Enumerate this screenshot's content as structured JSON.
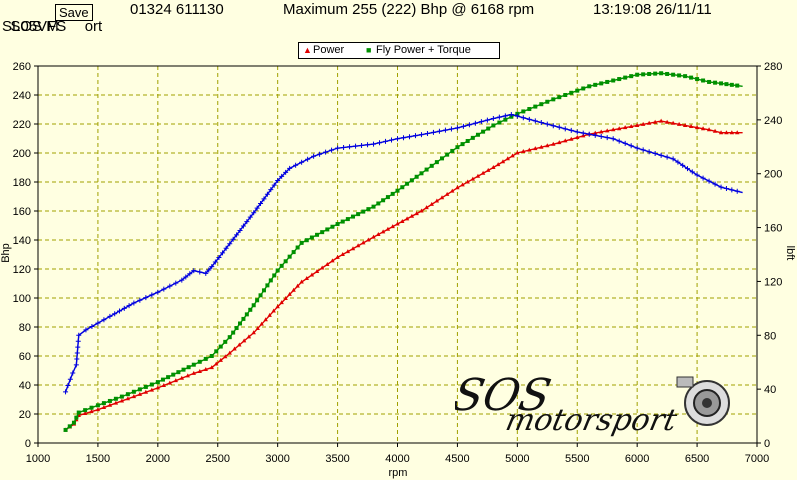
{
  "header": {
    "company": "SOS M",
    "company_tail": "ort",
    "phone": "01324 611130",
    "maximum": "Maximum 255 (222) Bhp @ 6168 rpm",
    "datetime": "13:19:08 26/11/11",
    "reg": "SL05VFS",
    "save_label": "Save"
  },
  "legend": {
    "power_label": "Power",
    "fly_label": "Fly Power + Torque"
  },
  "logo": {
    "line1": "SOS",
    "line2": "motorsport"
  },
  "colors": {
    "power": "#e00000",
    "fly": "#009000",
    "torque": "#0000e0",
    "grid": "#a0a000",
    "background": "#ffffe1"
  },
  "chart_data": {
    "type": "line",
    "title": "",
    "xlabel": "rpm",
    "ylabel": "Bhp",
    "y2label": "lbft",
    "xlim": [
      1000,
      7000
    ],
    "ylim": [
      0,
      260
    ],
    "y2lim": [
      0,
      280
    ],
    "xticks": [
      1000,
      1500,
      2000,
      2500,
      3000,
      3500,
      4000,
      4500,
      5000,
      5500,
      6000,
      6500,
      7000
    ],
    "yticks": [
      0,
      20,
      40,
      60,
      80,
      100,
      120,
      140,
      160,
      180,
      200,
      220,
      240,
      260
    ],
    "y2ticks": [
      0,
      40,
      80,
      120,
      160,
      200,
      240,
      280
    ],
    "grid": true,
    "series": [
      {
        "name": "Power",
        "axis": "left",
        "x": [
          1230,
          1300,
          1340,
          1500,
          1700,
          2000,
          2300,
          2450,
          2600,
          2800,
          3000,
          3200,
          3500,
          3800,
          4000,
          4200,
          4500,
          4800,
          5000,
          5300,
          5600,
          6000,
          6200,
          6400,
          6600,
          6700,
          6880
        ],
        "y": [
          9,
          13,
          19,
          23,
          29,
          38,
          48,
          52,
          62,
          76,
          94,
          111,
          128,
          142,
          151,
          160,
          176,
          190,
          200,
          206,
          213,
          219,
          222,
          219,
          216,
          214,
          214
        ]
      },
      {
        "name": "Fly Power",
        "axis": "left",
        "x": [
          1230,
          1300,
          1340,
          1500,
          1700,
          2000,
          2300,
          2450,
          2600,
          2800,
          3000,
          3200,
          3500,
          3800,
          4000,
          4200,
          4500,
          4800,
          5000,
          5300,
          5600,
          6000,
          6200,
          6400,
          6600,
          6700,
          6880
        ],
        "y": [
          9,
          14,
          21,
          26,
          32,
          42,
          54,
          60,
          73,
          95,
          119,
          138,
          151,
          163,
          174,
          186,
          204,
          219,
          227,
          237,
          246,
          254,
          255,
          253,
          249,
          248,
          246
        ]
      },
      {
        "name": "Torque",
        "axis": "right",
        "x": [
          1230,
          1290,
          1320,
          1340,
          1400,
          1500,
          1600,
          1800,
          2000,
          2200,
          2300,
          2400,
          2450,
          2600,
          2800,
          3000,
          3100,
          3300,
          3500,
          3800,
          4000,
          4200,
          4500,
          4800,
          4950,
          5200,
          5500,
          5800,
          6000,
          6300,
          6500,
          6700,
          6880
        ],
        "y": [
          38,
          52,
          58,
          80,
          84,
          89,
          94,
          104,
          112,
          121,
          128,
          126,
          131,
          148,
          171,
          195,
          204,
          213,
          219,
          222,
          226,
          229,
          234,
          241,
          244,
          238,
          231,
          226,
          219,
          211,
          199,
          190,
          186
        ]
      }
    ]
  }
}
